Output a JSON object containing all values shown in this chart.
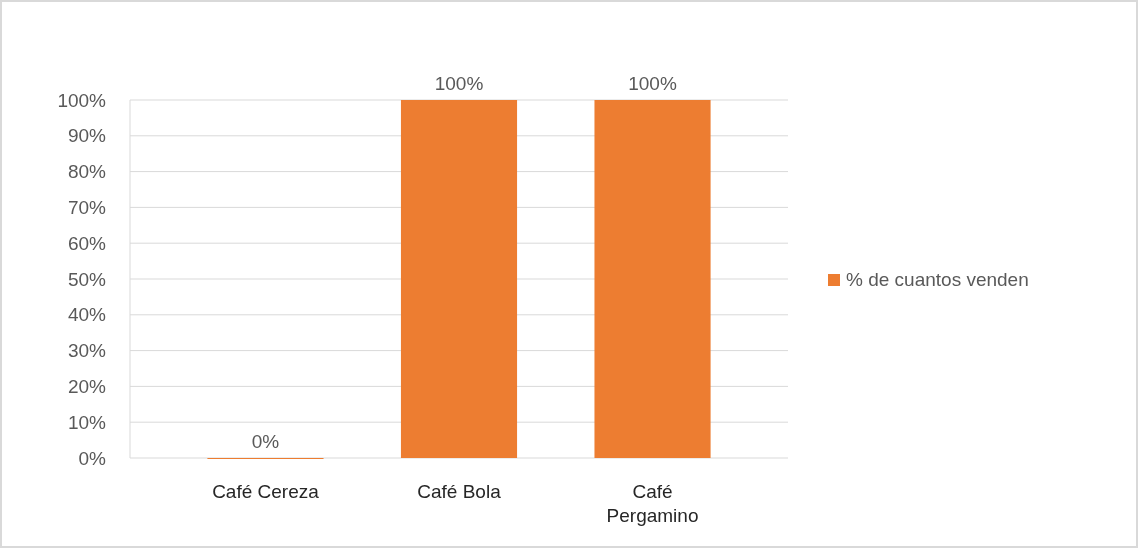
{
  "chart_data": {
    "type": "bar",
    "categories": [
      "Café Cereza",
      "Café Bola",
      "Café Pergamino"
    ],
    "series": [
      {
        "name": "% de cuantos venden",
        "color": "#ed7d31",
        "values": [
          0,
          100,
          100
        ]
      }
    ],
    "ylim": [
      0,
      100
    ],
    "yticks": [
      {
        "value": 0,
        "label": "0%"
      },
      {
        "value": 10,
        "label": "10%"
      },
      {
        "value": 20,
        "label": "20%"
      },
      {
        "value": 30,
        "label": "30%"
      },
      {
        "value": 40,
        "label": "40%"
      },
      {
        "value": 50,
        "label": "50%"
      },
      {
        "value": 60,
        "label": "60%"
      },
      {
        "value": 70,
        "label": "70%"
      },
      {
        "value": 80,
        "label": "80%"
      },
      {
        "value": 90,
        "label": "90%"
      },
      {
        "value": 100,
        "label": "100%"
      }
    ],
    "grid": "y",
    "legend": "right",
    "value_labels": [
      "0%",
      "100%",
      "100%"
    ]
  }
}
